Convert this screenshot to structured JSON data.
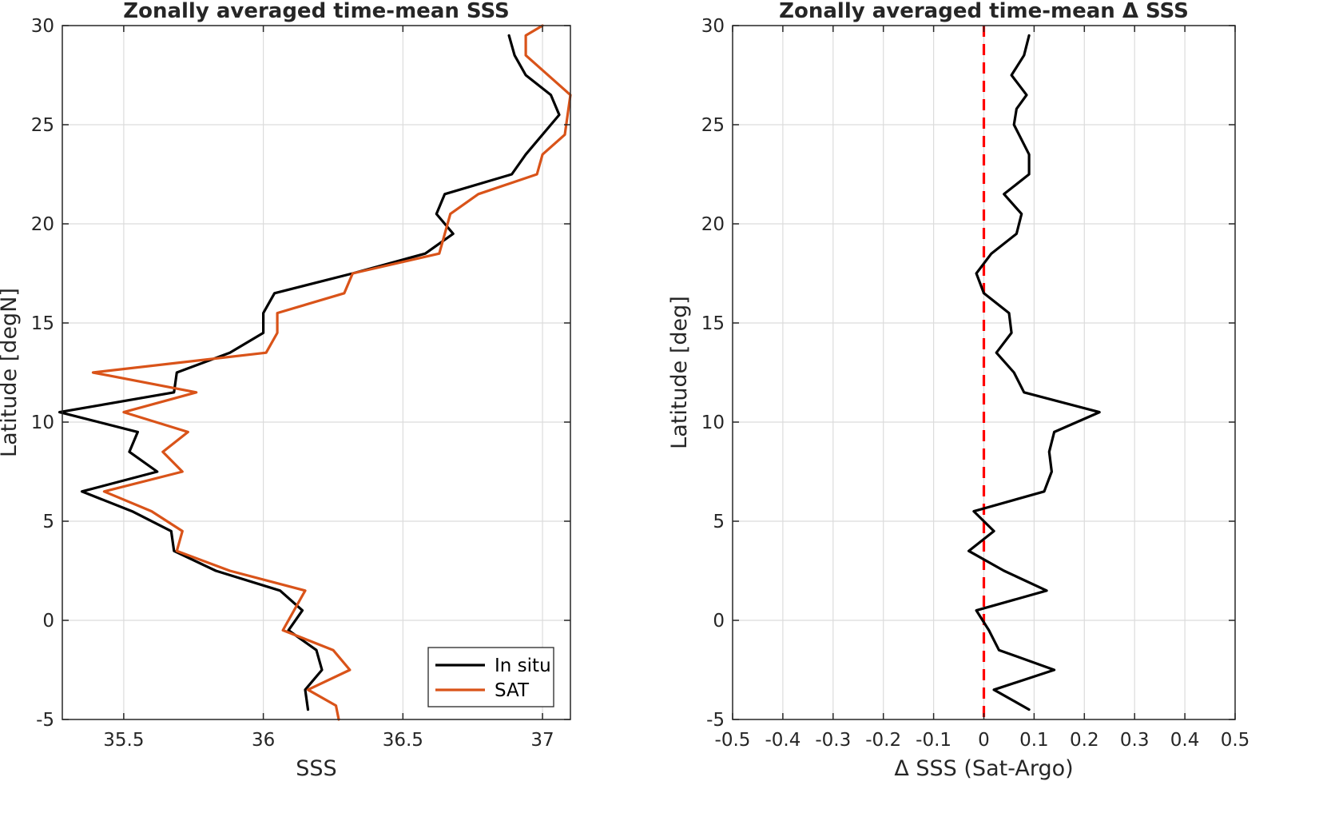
{
  "chart_data": [
    {
      "type": "line",
      "title": "Zonally averaged time-mean SSS",
      "xlabel": "SSS",
      "ylabel": "Latitude [degN]",
      "xlim": [
        35.28,
        37.1
      ],
      "ylim": [
        -5,
        30
      ],
      "xticks": [
        35.5,
        36,
        36.5,
        37
      ],
      "xtick_labels": [
        "35.5",
        "36",
        "36.5",
        "37"
      ],
      "yticks": [
        -5,
        0,
        5,
        10,
        15,
        20,
        25,
        30
      ],
      "ytick_labels": [
        "-5",
        "0",
        "5",
        "10",
        "15",
        "20",
        "25",
        "30"
      ],
      "grid": true,
      "legend_placement": "bottom-right",
      "series": [
        {
          "name": "In situ",
          "color": "#000000",
          "points": [
            [
              36.16,
              -4.5
            ],
            [
              36.15,
              -3.5
            ],
            [
              36.21,
              -2.5
            ],
            [
              36.19,
              -1.5
            ],
            [
              36.09,
              -0.5
            ],
            [
              36.14,
              0.5
            ],
            [
              36.06,
              1.5
            ],
            [
              35.83,
              2.5
            ],
            [
              35.68,
              3.5
            ],
            [
              35.67,
              4.5
            ],
            [
              35.53,
              5.5
            ],
            [
              35.35,
              6.5
            ],
            [
              35.62,
              7.5
            ],
            [
              35.52,
              8.5
            ],
            [
              35.55,
              9.5
            ],
            [
              35.27,
              10.5
            ],
            [
              35.68,
              11.5
            ],
            [
              35.69,
              12.5
            ],
            [
              35.88,
              13.5
            ],
            [
              36.0,
              14.5
            ],
            [
              36.0,
              15.5
            ],
            [
              36.04,
              16.5
            ],
            [
              36.32,
              17.5
            ],
            [
              36.58,
              18.5
            ],
            [
              36.68,
              19.5
            ],
            [
              36.62,
              20.5
            ],
            [
              36.65,
              21.5
            ],
            [
              36.89,
              22.5
            ],
            [
              36.94,
              23.5
            ],
            [
              37.06,
              25.5
            ],
            [
              37.03,
              26.5
            ],
            [
              36.94,
              27.5
            ],
            [
              36.9,
              28.5
            ],
            [
              36.88,
              29.5
            ]
          ]
        },
        {
          "name": "SAT",
          "color": "#D95319",
          "points": [
            [
              36.27,
              -5.0
            ],
            [
              36.26,
              -4.3
            ],
            [
              36.16,
              -3.5
            ],
            [
              36.31,
              -2.5
            ],
            [
              36.25,
              -1.5
            ],
            [
              36.07,
              -0.5
            ],
            [
              36.11,
              0.5
            ],
            [
              36.15,
              1.5
            ],
            [
              35.88,
              2.5
            ],
            [
              35.69,
              3.5
            ],
            [
              35.71,
              4.5
            ],
            [
              35.6,
              5.5
            ],
            [
              35.43,
              6.5
            ],
            [
              35.71,
              7.5
            ],
            [
              35.64,
              8.5
            ],
            [
              35.73,
              9.5
            ],
            [
              35.5,
              10.5
            ],
            [
              35.76,
              11.5
            ],
            [
              35.39,
              12.5
            ],
            [
              36.01,
              13.5
            ],
            [
              36.05,
              14.5
            ],
            [
              36.05,
              15.5
            ],
            [
              36.29,
              16.5
            ],
            [
              36.32,
              17.5
            ],
            [
              36.63,
              18.5
            ],
            [
              36.67,
              20.5
            ],
            [
              36.77,
              21.5
            ],
            [
              36.98,
              22.5
            ],
            [
              37.0,
              23.5
            ],
            [
              37.08,
              24.5
            ],
            [
              37.1,
              26.5
            ],
            [
              36.94,
              28.5
            ],
            [
              36.94,
              29.5
            ],
            [
              37.0,
              30.0
            ]
          ]
        }
      ]
    },
    {
      "type": "line",
      "title": "Zonally averaged time-mean Δ SSS",
      "xlabel": "Δ SSS (Sat-Argo)",
      "ylabel": "Latitude [deg]",
      "xlim": [
        -0.5,
        0.5
      ],
      "ylim": [
        -5,
        30
      ],
      "xticks": [
        -0.5,
        -0.4,
        -0.3,
        -0.2,
        -0.1,
        0,
        0.1,
        0.2,
        0.3,
        0.4,
        0.5
      ],
      "xtick_labels": [
        "-0.5",
        "-0.4",
        "-0.3",
        "-0.2",
        "-0.1",
        "0",
        "0.1",
        "0.2",
        "0.3",
        "0.4",
        "0.5"
      ],
      "yticks": [
        -5,
        0,
        5,
        10,
        15,
        20,
        25,
        30
      ],
      "ytick_labels": [
        "-5",
        "0",
        "5",
        "10",
        "15",
        "20",
        "25",
        "30"
      ],
      "grid": true,
      "reference_line": {
        "x": 0,
        "color": "#FF0000",
        "style": "dashed"
      },
      "series": [
        {
          "color": "#000000",
          "points": [
            [
              0.09,
              -4.5
            ],
            [
              0.02,
              -3.5
            ],
            [
              0.14,
              -2.5
            ],
            [
              0.03,
              -1.5
            ],
            [
              0.01,
              -0.5
            ],
            [
              -0.015,
              0.5
            ],
            [
              0.125,
              1.5
            ],
            [
              0.04,
              2.5
            ],
            [
              -0.03,
              3.5
            ],
            [
              0.02,
              4.5
            ],
            [
              -0.02,
              5.5
            ],
            [
              0.12,
              6.5
            ],
            [
              0.135,
              7.5
            ],
            [
              0.13,
              8.5
            ],
            [
              0.14,
              9.5
            ],
            [
              0.23,
              10.5
            ],
            [
              0.08,
              11.5
            ],
            [
              0.06,
              12.5
            ],
            [
              0.025,
              13.5
            ],
            [
              0.055,
              14.5
            ],
            [
              0.05,
              15.5
            ],
            [
              0.0,
              16.5
            ],
            [
              -0.015,
              17.5
            ],
            [
              0.015,
              18.5
            ],
            [
              0.065,
              19.5
            ],
            [
              0.075,
              20.5
            ],
            [
              0.04,
              21.5
            ],
            [
              0.09,
              22.5
            ],
            [
              0.09,
              23.5
            ],
            [
              0.06,
              25.0
            ],
            [
              0.065,
              25.8
            ],
            [
              0.085,
              26.5
            ],
            [
              0.055,
              27.5
            ],
            [
              0.08,
              28.5
            ],
            [
              0.09,
              29.5
            ]
          ]
        }
      ]
    }
  ]
}
